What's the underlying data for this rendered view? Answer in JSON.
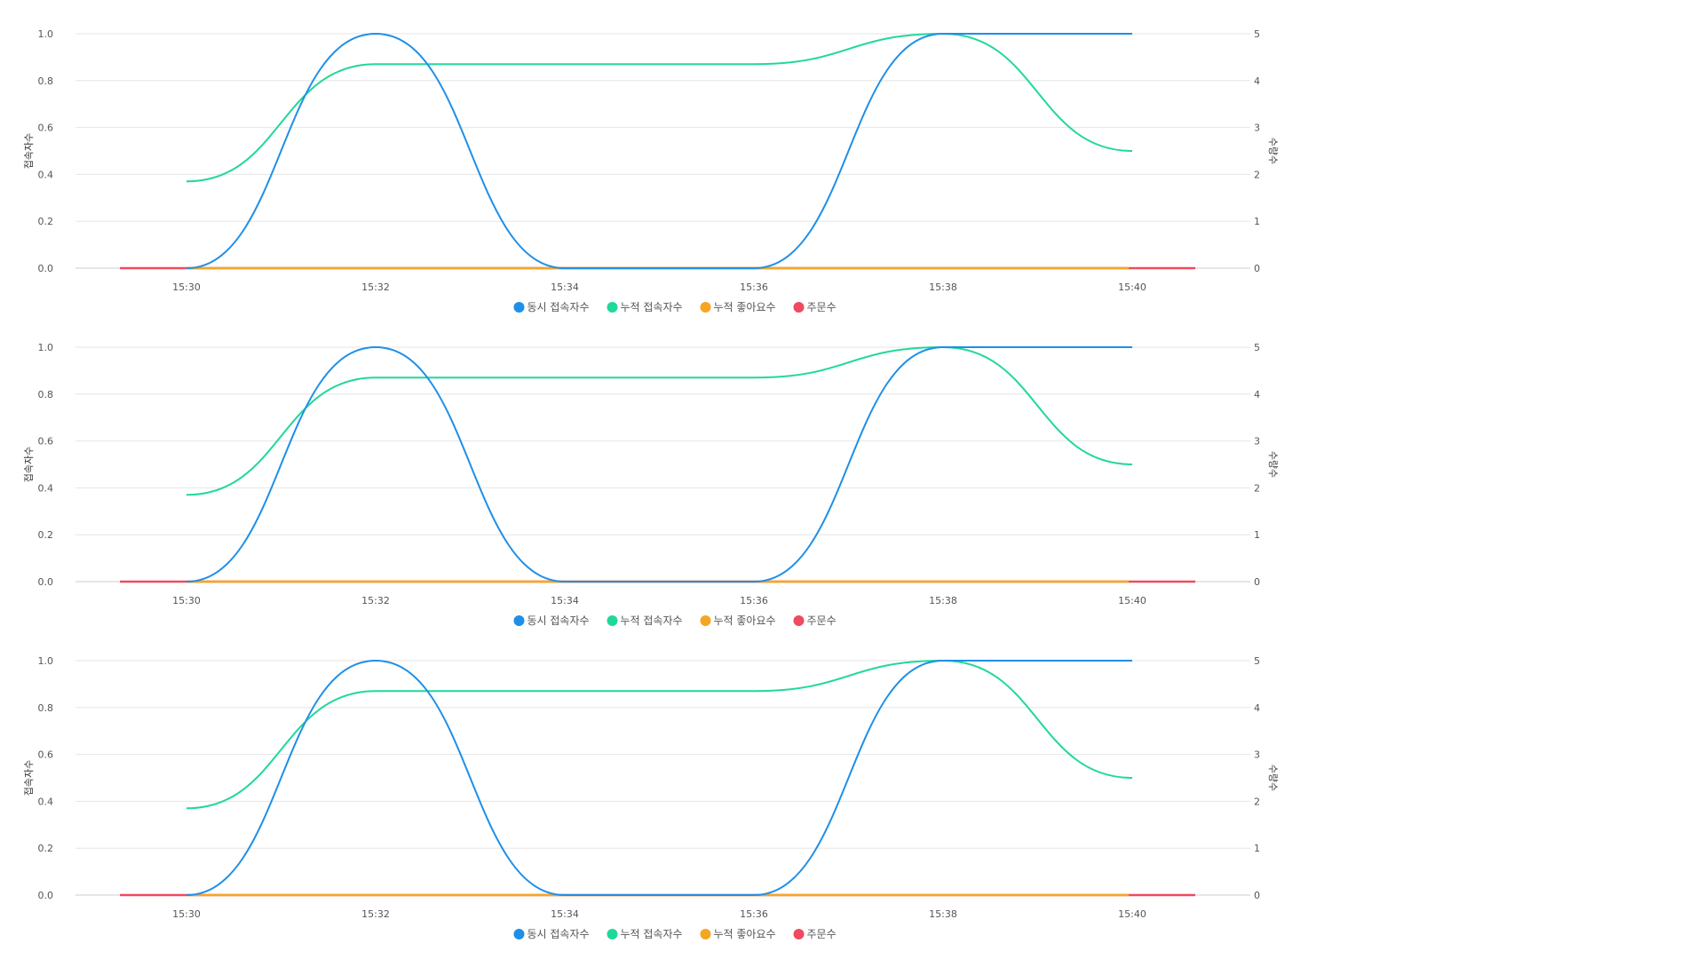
{
  "chart_data": [
    {
      "type": "line",
      "title": "",
      "xlabel": "",
      "ylabel": "접속자수",
      "y2label": "수량수",
      "x": [
        "15:30",
        "15:32",
        "15:34",
        "15:36",
        "15:38",
        "15:40"
      ],
      "ylim": [
        0,
        1.0
      ],
      "y2lim": [
        0,
        5
      ],
      "yticks": [
        "0.0",
        "0.2",
        "0.4",
        "0.6",
        "0.8",
        "1.0"
      ],
      "y2ticks": [
        "0",
        "1",
        "2",
        "3",
        "4",
        "5"
      ],
      "grid": true,
      "legend": "bottom-center",
      "series": [
        {
          "name": "동시 접속자수",
          "color": "#1e8fe8",
          "axis": "left",
          "values": [
            0,
            1,
            0,
            0,
            1,
            1
          ]
        },
        {
          "name": "누적 접속자수",
          "color": "#20d89a",
          "axis": "right",
          "values": [
            1.85,
            4.35,
            4.35,
            4.35,
            5,
            2.5
          ]
        },
        {
          "name": "누적 좋아요수",
          "color": "#f5a623",
          "axis": "right",
          "values": [
            0,
            0,
            0,
            0,
            0,
            0
          ]
        },
        {
          "name": "주문수",
          "color": "#ef4a60",
          "axis": "right",
          "values": [
            0,
            0,
            0,
            0,
            0,
            0
          ]
        }
      ]
    },
    {
      "type": "line",
      "title": "",
      "xlabel": "",
      "ylabel": "접속자수",
      "y2label": "수량수",
      "x": [
        "15:30",
        "15:32",
        "15:34",
        "15:36",
        "15:38",
        "15:40"
      ],
      "ylim": [
        0,
        1.0
      ],
      "y2lim": [
        0,
        5
      ],
      "yticks": [
        "0.0",
        "0.2",
        "0.4",
        "0.6",
        "0.8",
        "1.0"
      ],
      "y2ticks": [
        "0",
        "1",
        "2",
        "3",
        "4",
        "5"
      ],
      "grid": true,
      "legend": "bottom-center",
      "series": [
        {
          "name": "동시 접속자수",
          "color": "#1e8fe8",
          "axis": "left",
          "values": [
            0,
            1,
            0,
            0,
            1,
            1
          ]
        },
        {
          "name": "누적 접속자수",
          "color": "#20d89a",
          "axis": "right",
          "values": [
            1.85,
            4.35,
            4.35,
            4.35,
            5,
            2.5
          ]
        },
        {
          "name": "누적 좋아요수",
          "color": "#f5a623",
          "axis": "right",
          "values": [
            0,
            0,
            0,
            0,
            0,
            0
          ]
        },
        {
          "name": "주문수",
          "color": "#ef4a60",
          "axis": "right",
          "values": [
            0,
            0,
            0,
            0,
            0,
            0
          ]
        }
      ]
    },
    {
      "type": "line",
      "title": "",
      "xlabel": "",
      "ylabel": "접속자수",
      "y2label": "수량수",
      "x": [
        "15:30",
        "15:32",
        "15:34",
        "15:36",
        "15:38",
        "15:40"
      ],
      "ylim": [
        0,
        1.0
      ],
      "y2lim": [
        0,
        5
      ],
      "yticks": [
        "0.0",
        "0.2",
        "0.4",
        "0.6",
        "0.8",
        "1.0"
      ],
      "y2ticks": [
        "0",
        "1",
        "2",
        "3",
        "4",
        "5"
      ],
      "grid": true,
      "legend": "bottom-center",
      "series": [
        {
          "name": "동시 접속자수",
          "color": "#1e8fe8",
          "axis": "left",
          "values": [
            0,
            1,
            0,
            0,
            1,
            1
          ]
        },
        {
          "name": "누적 접속자수",
          "color": "#20d89a",
          "axis": "right",
          "values": [
            1.85,
            4.35,
            4.35,
            4.35,
            5,
            2.5
          ]
        },
        {
          "name": "누적 좋아요수",
          "color": "#f5a623",
          "axis": "right",
          "values": [
            0,
            0,
            0,
            0,
            0,
            0
          ]
        },
        {
          "name": "주문수",
          "color": "#ef4a60",
          "axis": "right",
          "values": [
            0,
            0,
            0,
            0,
            0,
            0
          ]
        }
      ]
    }
  ]
}
